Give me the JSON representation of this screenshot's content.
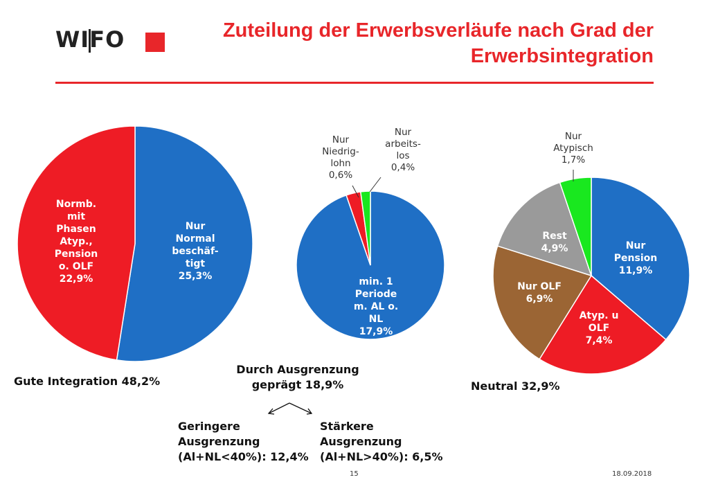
{
  "header": {
    "logo_text": "WIFO",
    "title": "Zuteilung der Erwerbsverläufe nach Grad der Erwerbsintegration"
  },
  "colors": {
    "accent": "#e8262a",
    "blue": "#1f6fc5",
    "red": "#ee1c25",
    "green": "#19e81f",
    "brown": "#9b6534",
    "gray": "#9a9a9a"
  },
  "chart_data": [
    {
      "type": "pie",
      "title": "",
      "slices": [
        {
          "label": "Nur\nNormal\nbeschäf-\ntigt\n25,3%",
          "value": 25.3,
          "color": "#1f6fc5"
        },
        {
          "label": "Normb.\nmit\nPhasen\nAtyp.,\nPension\no. OLF\n22,9%",
          "value": 22.9,
          "color": "#ee1c25"
        }
      ]
    },
    {
      "type": "pie",
      "title": "",
      "slices": [
        {
          "label": "min. 1\nPeriode\nm. AL o.\nNL\n17,9%",
          "value": 17.9,
          "color": "#1f6fc5"
        },
        {
          "label": "Nur\nNiedrig-\nlohn\n0,6%",
          "value": 0.6,
          "color": "#ee1c25"
        },
        {
          "label": "Nur\narbeits-\nlos\n0,4%",
          "value": 0.4,
          "color": "#19e81f"
        }
      ]
    },
    {
      "type": "pie",
      "title": "",
      "slices": [
        {
          "label": "Nur\nPension\n11,9%",
          "value": 11.9,
          "color": "#1f6fc5"
        },
        {
          "label": "Atyp. u\nOLF\n7,4%",
          "value": 7.4,
          "color": "#ee1c25"
        },
        {
          "label": "Nur OLF\n6,9%",
          "value": 6.9,
          "color": "#9b6534"
        },
        {
          "label": "Rest\n4,9%",
          "value": 4.9,
          "color": "#9a9a9a"
        },
        {
          "label": "Nur\nAtypisch\n1,7%",
          "value": 1.7,
          "color": "#19e81f"
        }
      ]
    }
  ],
  "captions": {
    "gute": "Gute Integration 48,2%",
    "ausgrenzung": "Durch Ausgrenzung\ngeprägt 18,9%",
    "geringere": "Geringere\nAusgrenzung\n(Al+NL<40%): 12,4%",
    "staerkere": "Stärkere\nAusgrenzung\n(Al+NL>40%): 6,5%",
    "neutral": "Neutral 32,9%"
  },
  "footer": {
    "page": "15",
    "date": "18.09.2018"
  }
}
